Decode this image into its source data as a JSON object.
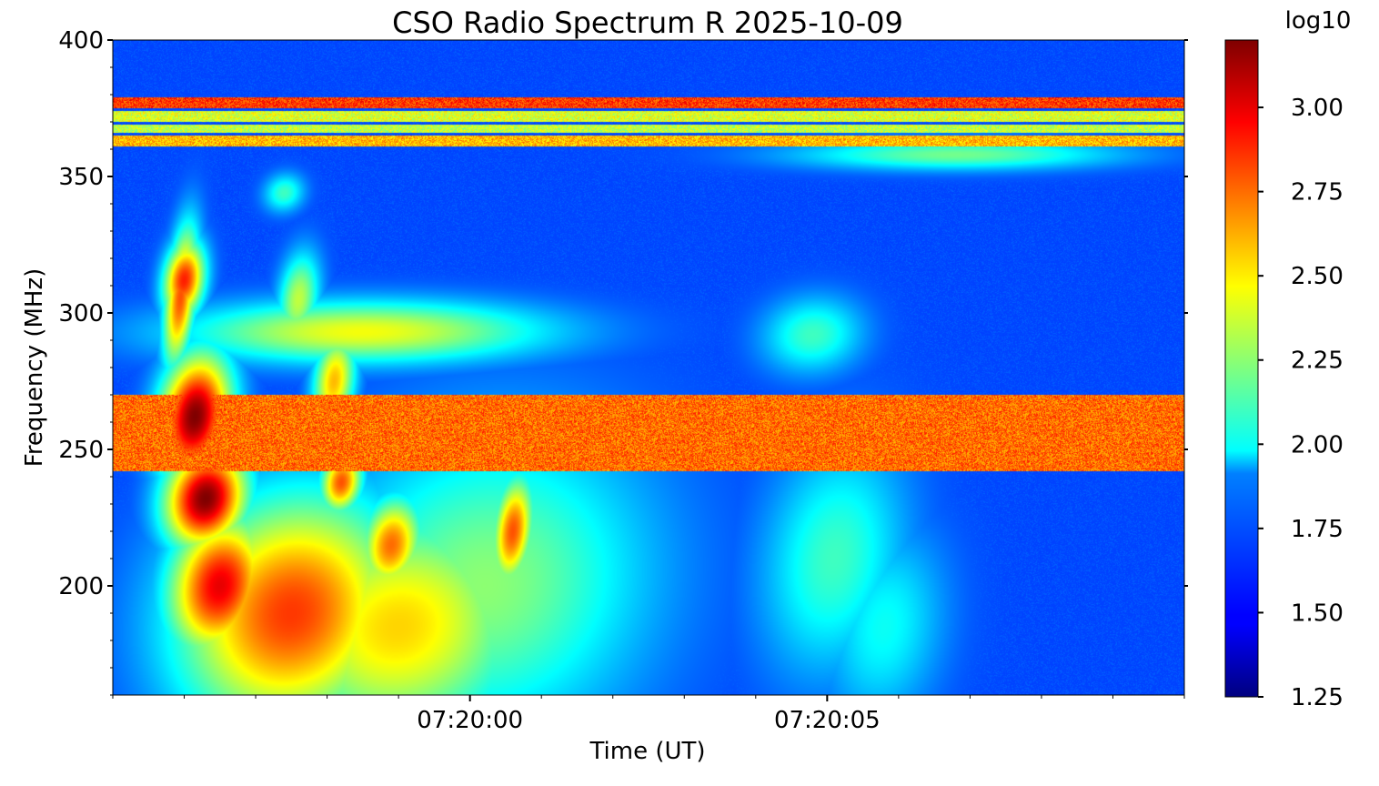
{
  "chart_data": {
    "type": "heatmap",
    "title": "CSO Radio Spectrum R 2025-10-09",
    "xlabel": "Time (UT)",
    "ylabel": "Frequency (MHz)",
    "colorbar_label": "log10",
    "colormap": "jet",
    "ylim": [
      160,
      400
    ],
    "clim": [
      1.25,
      3.2
    ],
    "y_ticks": [
      {
        "value": 200,
        "label": "200"
      },
      {
        "value": 250,
        "label": "250"
      },
      {
        "value": 300,
        "label": "300"
      },
      {
        "value": 350,
        "label": "350"
      },
      {
        "value": 400,
        "label": "400"
      }
    ],
    "x_ticks": [
      {
        "value": 5.0,
        "label": "07:20:00"
      },
      {
        "value": 10.0,
        "label": "07:20:05"
      }
    ],
    "xlim_seconds_after_07_19_55": [
      0.0,
      15.0
    ],
    "colorbar_ticks": [
      {
        "value": 1.25,
        "label": "1.25"
      },
      {
        "value": 1.5,
        "label": "1.50"
      },
      {
        "value": 1.75,
        "label": "1.75"
      },
      {
        "value": 2.0,
        "label": "2.00"
      },
      {
        "value": 2.25,
        "label": "2.25"
      },
      {
        "value": 2.5,
        "label": "2.50"
      },
      {
        "value": 2.75,
        "label": "2.75"
      },
      {
        "value": 3.0,
        "label": "3.00"
      }
    ],
    "background_level": 1.62,
    "interference_bands": [
      {
        "f0": 375,
        "f1": 379,
        "level": 3.0
      },
      {
        "f0": 370,
        "f1": 374,
        "level": 2.55
      },
      {
        "f0": 366,
        "f1": 369,
        "level": 2.5
      },
      {
        "f0": 361,
        "f1": 365,
        "level": 2.75
      },
      {
        "f0": 242,
        "f1": 270,
        "level": 2.9
      }
    ],
    "features": [
      {
        "t": 0.95,
        "f": 306,
        "level": 2.8,
        "dt": 0.15,
        "df": 18
      },
      {
        "t": 1.0,
        "f": 312,
        "level": 2.9,
        "dt": 0.2,
        "df": 10
      },
      {
        "t": 1.15,
        "f": 262,
        "level": 3.2,
        "dt": 0.35,
        "df": 16
      },
      {
        "t": 1.3,
        "f": 232,
        "level": 3.2,
        "dt": 0.4,
        "df": 13
      },
      {
        "t": 1.5,
        "f": 200,
        "level": 3.0,
        "dt": 0.5,
        "df": 18
      },
      {
        "t": 2.5,
        "f": 190,
        "level": 2.85,
        "dt": 1.1,
        "df": 30
      },
      {
        "t": 3.1,
        "f": 275,
        "level": 2.6,
        "dt": 0.2,
        "df": 12
      },
      {
        "t": 3.2,
        "f": 238,
        "level": 2.8,
        "dt": 0.2,
        "df": 8
      },
      {
        "t": 3.9,
        "f": 215,
        "level": 2.75,
        "dt": 0.3,
        "df": 12
      },
      {
        "t": 4.0,
        "f": 185,
        "level": 2.55,
        "dt": 1.3,
        "df": 30
      },
      {
        "t": 5.6,
        "f": 220,
        "level": 2.8,
        "dt": 0.2,
        "df": 14
      },
      {
        "t": 5.2,
        "f": 200,
        "level": 2.25,
        "dt": 1.6,
        "df": 40
      },
      {
        "t": 3.5,
        "f": 293,
        "level": 2.45,
        "dt": 1.8,
        "df": 8
      },
      {
        "t": 2.6,
        "f": 305,
        "level": 2.35,
        "dt": 0.2,
        "df": 12
      },
      {
        "t": 10.1,
        "f": 210,
        "level": 2.1,
        "dt": 0.7,
        "df": 30
      },
      {
        "t": 10.8,
        "f": 185,
        "level": 2.0,
        "dt": 0.6,
        "df": 25
      },
      {
        "t": 9.8,
        "f": 292,
        "level": 2.1,
        "dt": 0.5,
        "df": 10
      },
      {
        "t": 11.8,
        "f": 358,
        "level": 2.2,
        "dt": 1.6,
        "df": 4
      },
      {
        "t": 2.4,
        "f": 344,
        "level": 2.1,
        "dt": 0.2,
        "df": 5
      }
    ]
  }
}
